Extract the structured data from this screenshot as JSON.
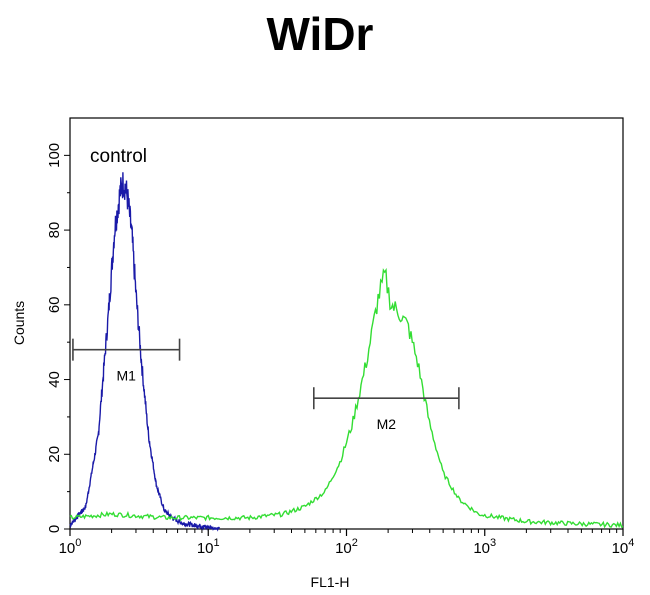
{
  "chart_data": {
    "type": "line",
    "title": "WiDr",
    "xlabel": "FL1-H",
    "ylabel": "Counts",
    "x_scale": "log",
    "xlim": [
      1,
      10000
    ],
    "ylim": [
      0,
      110
    ],
    "x_ticks": [
      {
        "value": 1,
        "base": "10",
        "exp": "0"
      },
      {
        "value": 10,
        "base": "10",
        "exp": "1"
      },
      {
        "value": 100,
        "base": "10",
        "exp": "2"
      },
      {
        "value": 1000,
        "base": "10",
        "exp": "3"
      },
      {
        "value": 10000,
        "base": "10",
        "exp": "4"
      }
    ],
    "y_ticks": [
      0,
      20,
      40,
      60,
      80,
      100
    ],
    "grid": false,
    "series": [
      {
        "name": "control",
        "color": "#1a1aa8",
        "x": [
          1,
          1.3,
          1.6,
          1.9,
          2.1,
          2.3,
          2.45,
          2.6,
          2.8,
          3.0,
          3.3,
          3.7,
          4.2,
          4.8,
          5.5,
          6.5,
          8,
          10,
          12
        ],
        "y": [
          1,
          6,
          25,
          58,
          80,
          90,
          93,
          89,
          79,
          63,
          44,
          25,
          12,
          5,
          3,
          1.5,
          1,
          0.5,
          0
        ]
      },
      {
        "name": "",
        "color": "#33dd33",
        "x": [
          1,
          2,
          5,
          10,
          20,
          35,
          50,
          70,
          90,
          110,
          140,
          170,
          190,
          210,
          240,
          280,
          330,
          400,
          500,
          650,
          900,
          1300,
          2000,
          4000,
          10000
        ],
        "y": [
          3,
          4,
          3,
          3,
          3,
          4,
          6,
          10,
          18,
          28,
          45,
          62,
          68,
          60,
          58,
          54,
          44,
          28,
          15,
          8,
          4,
          3,
          2,
          1.5,
          1
        ]
      }
    ],
    "markers": [
      {
        "label": "M1",
        "x_start": 1.05,
        "x_end": 6.2,
        "y": 48
      },
      {
        "label": "M2",
        "x_start": 58,
        "x_end": 650,
        "y": 35
      }
    ]
  }
}
